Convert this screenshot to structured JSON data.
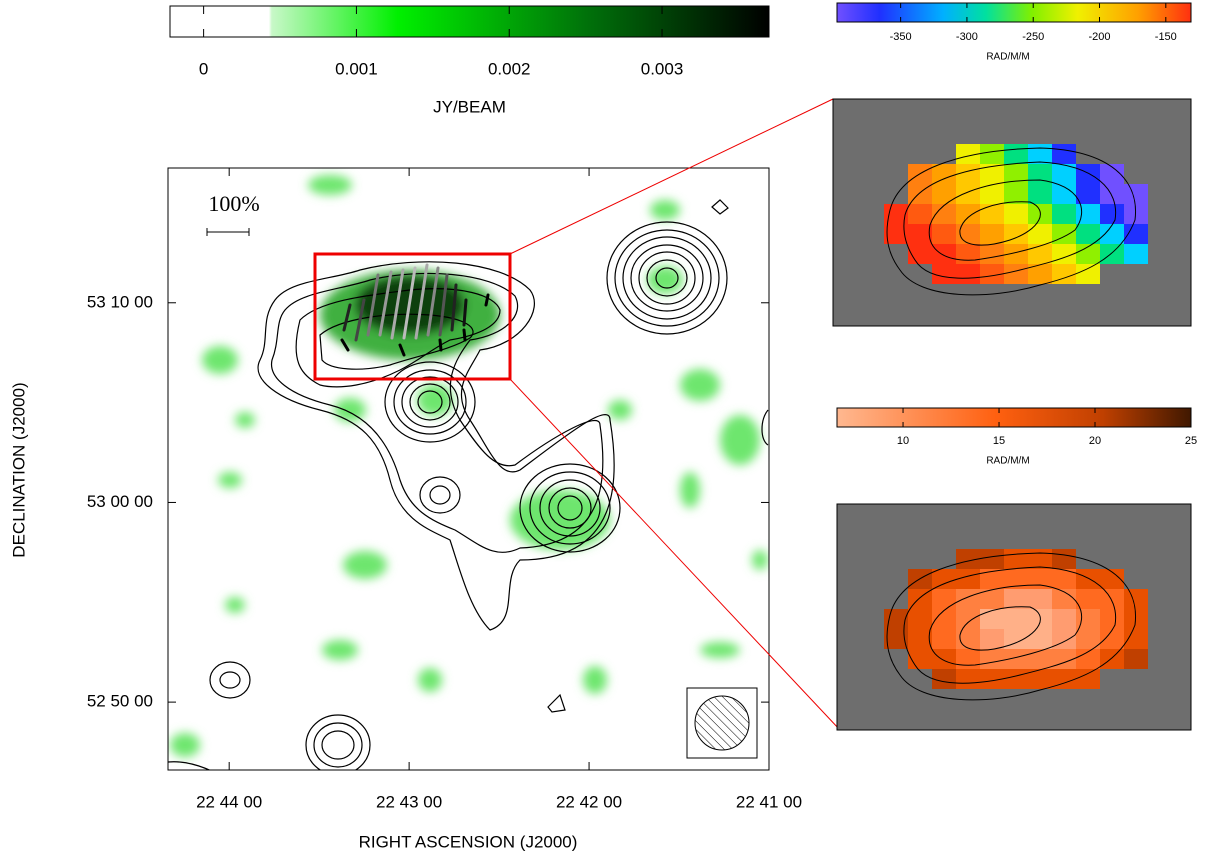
{
  "chart_data": [
    {
      "type": "image",
      "xlabel": "RIGHT ASCENSION  (J2000)",
      "ylabel": "DECLINATION  (J2000)",
      "annotation": "100%",
      "xlim": [
        44.34,
        41.0
      ],
      "xticks": [
        {
          "value": 44,
          "label": "22 44 00"
        },
        {
          "value": 43,
          "label": "22 43 00"
        },
        {
          "value": 42,
          "label": "22 42 00"
        },
        {
          "value": 41,
          "label": "22 41 00"
        }
      ],
      "ylim": [
        3166.6,
        3196.75
      ],
      "yticks": [
        {
          "value": 3170,
          "label": "52 50 00"
        },
        {
          "value": 3180,
          "label": "53 00 00"
        },
        {
          "value": 3190,
          "label": "53 10 00"
        }
      ]
    },
    {
      "type": "colorbar",
      "label": "JY/BEAM",
      "xlim": [
        -0.00022,
        0.0037
      ],
      "xticks": [
        0,
        0.001,
        0.002,
        0.003
      ]
    },
    {
      "type": "colorbar",
      "label": "RAD/M/M",
      "xlim": [
        -398,
        -131
      ],
      "xticks": [
        -350,
        -300,
        -250,
        -200,
        -150
      ]
    },
    {
      "type": "colorbar",
      "label": "RAD/M/M",
      "xlim": [
        6.56,
        25
      ],
      "xticks": [
        10,
        15,
        20,
        25
      ]
    }
  ]
}
